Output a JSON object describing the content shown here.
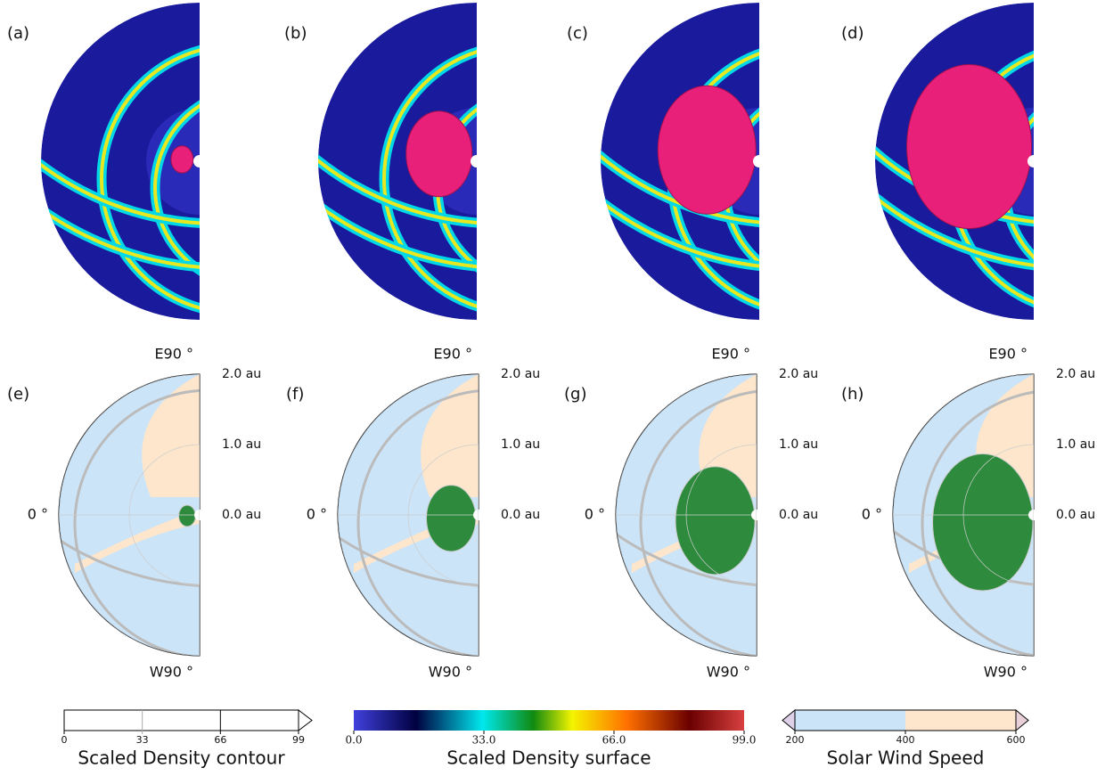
{
  "top_panels": [
    {
      "label": "(a)"
    },
    {
      "label": "(b)"
    },
    {
      "label": "(c)"
    },
    {
      "label": "(d)"
    }
  ],
  "bottom_panels": [
    {
      "label": "(e)"
    },
    {
      "label": "(f)"
    },
    {
      "label": "(g)"
    },
    {
      "label": "(h)"
    }
  ],
  "polar_axes": {
    "top": "E90 °",
    "bottom": "W90 °",
    "left": "0 °",
    "rlim": [
      0,
      2
    ],
    "rticks": [
      {
        "value": 2,
        "label": "2.0 au"
      },
      {
        "value": 1,
        "label": "1.0 au"
      },
      {
        "value": 0,
        "label": "0.0 au"
      }
    ]
  },
  "colorbars": [
    {
      "title": "Scaled Density contour",
      "lim": [
        0,
        99
      ],
      "ticks": [
        0,
        33,
        66,
        99
      ]
    },
    {
      "title": "Scaled Density surface",
      "lim": [
        0,
        99
      ],
      "ticks": [
        {
          "value": 0,
          "label": "0.0"
        },
        {
          "value": 33,
          "label": "33.0"
        },
        {
          "value": 66,
          "label": "66.0"
        },
        {
          "value": 99,
          "label": "99.0"
        }
      ]
    },
    {
      "title": "Solar Wind Speed",
      "lim": [
        200,
        600
      ],
      "ticks": [
        200,
        400,
        600
      ]
    }
  ]
}
